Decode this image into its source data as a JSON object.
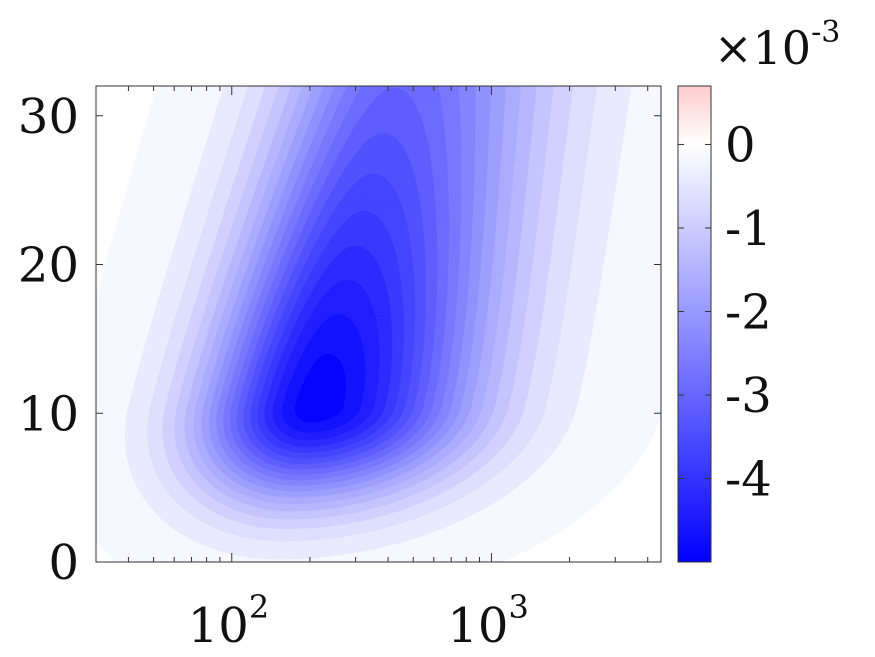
{
  "chart_data": {
    "type": "contour",
    "x_scale": "log",
    "xlim": [
      30,
      4500
    ],
    "ylim": [
      0,
      32
    ],
    "x_ticks": [
      {
        "value": 100,
        "base": "10",
        "exp": "2"
      },
      {
        "value": 1000,
        "base": "10",
        "exp": "3"
      }
    ],
    "y_ticks": [
      {
        "value": 0,
        "label": "0"
      },
      {
        "value": 10,
        "label": "10"
      },
      {
        "value": 20,
        "label": "20"
      },
      {
        "value": 30,
        "label": "30"
      }
    ],
    "field": {
      "peak_value": -0.00494,
      "peak_x": 210,
      "peak_y": 10.5,
      "min_contour_level": -3e-05,
      "contour_step": 0.00025
    },
    "colorbar": {
      "range": [
        -0.005,
        0.0007
      ],
      "colors": {
        "min": "#0000ff",
        "zero": "#ffffff",
        "max": "#ffcccc"
      },
      "multiplier": {
        "prefix": "×10",
        "exp": "-3"
      },
      "ticks": [
        {
          "value": 0,
          "label": "0"
        },
        {
          "value": -0.001,
          "label": "-1"
        },
        {
          "value": -0.002,
          "label": "-2"
        },
        {
          "value": -0.003,
          "label": "-3"
        },
        {
          "value": -0.004,
          "label": "-4"
        }
      ]
    }
  }
}
